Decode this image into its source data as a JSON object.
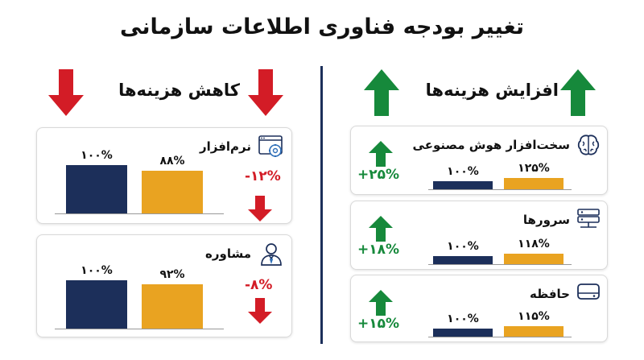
{
  "title": "تغییر بودجه فناوری اطلاعات سازمانی",
  "colors": {
    "navy": "#1c2f5a",
    "orange": "#e9a321",
    "green": "#16893b",
    "red": "#d31c26"
  },
  "increase_section": {
    "label": "افزایش هزینه‌ها",
    "arrow_icon": "arrow-up-icon"
  },
  "decrease_section": {
    "label": "کاهش هزینه‌ها",
    "arrow_icon": "arrow-down-icon"
  },
  "chart_data": [
    {
      "type": "bar",
      "title": "سخت‌افزار هوش مصنوعی",
      "icon": "brain-icon",
      "categories": [
        "before",
        "after"
      ],
      "values": [
        100,
        125
      ],
      "value_labels": [
        "۱۰۰%",
        "۱۲۵%"
      ],
      "change": "+۲۵%",
      "direction": "up"
    },
    {
      "type": "bar",
      "title": "سرورها",
      "icon": "server-icon",
      "categories": [
        "before",
        "after"
      ],
      "values": [
        100,
        118
      ],
      "value_labels": [
        "۱۰۰%",
        "۱۱۸%"
      ],
      "change": "+۱۸%",
      "direction": "up"
    },
    {
      "type": "bar",
      "title": "حافظه",
      "icon": "storage-drive-icon",
      "categories": [
        "before",
        "after"
      ],
      "values": [
        100,
        115
      ],
      "value_labels": [
        "۱۰۰%",
        "۱۱۵%"
      ],
      "change": "+۱۵%",
      "direction": "up"
    },
    {
      "type": "bar",
      "title": "نرم‌افزار",
      "icon": "software-settings-icon",
      "categories": [
        "before",
        "after"
      ],
      "values": [
        100,
        88
      ],
      "value_labels": [
        "۱۰۰%",
        "۸۸%"
      ],
      "change": "-۱۲%",
      "direction": "down"
    },
    {
      "type": "bar",
      "title": "مشاوره",
      "icon": "consultant-icon",
      "categories": [
        "before",
        "after"
      ],
      "values": [
        100,
        92
      ],
      "value_labels": [
        "۱۰۰%",
        "۹۲%"
      ],
      "change": "-۸%",
      "direction": "down"
    }
  ]
}
